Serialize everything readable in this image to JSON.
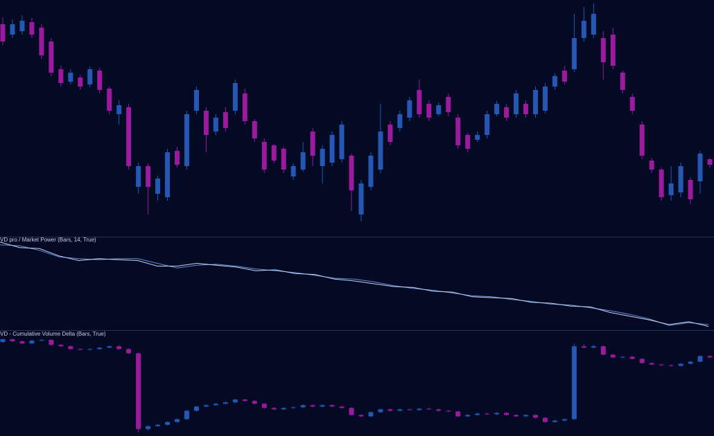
{
  "chart_data": [
    {
      "type": "candlestick",
      "up_color": "#2458b4",
      "down_color": "#9c1a9e",
      "ylim": [
        0,
        340
      ],
      "candles": [
        [
          305,
          315,
          275,
          280
        ],
        [
          290,
          312,
          285,
          305
        ],
        [
          295,
          318,
          290,
          310
        ],
        [
          308,
          314,
          285,
          290
        ],
        [
          300,
          305,
          255,
          260
        ],
        [
          280,
          285,
          230,
          235
        ],
        [
          240,
          245,
          215,
          220
        ],
        [
          222,
          240,
          218,
          235
        ],
        [
          228,
          232,
          210,
          215
        ],
        [
          218,
          244,
          214,
          240
        ],
        [
          238,
          242,
          205,
          210
        ],
        [
          212,
          215,
          175,
          180
        ],
        [
          175,
          195,
          160,
          188
        ],
        [
          185,
          190,
          95,
          100
        ],
        [
          70,
          105,
          60,
          100
        ],
        [
          100,
          104,
          30,
          70
        ],
        [
          60,
          86,
          50,
          82
        ],
        [
          55,
          125,
          50,
          120
        ],
        [
          122,
          128,
          98,
          102
        ],
        [
          100,
          180,
          95,
          175
        ],
        [
          180,
          215,
          175,
          210
        ],
        [
          180,
          185,
          120,
          145
        ],
        [
          150,
          175,
          145,
          170
        ],
        [
          178,
          185,
          150,
          155
        ],
        [
          180,
          225,
          175,
          220
        ],
        [
          205,
          212,
          160,
          165
        ],
        [
          165,
          168,
          135,
          140
        ],
        [
          135,
          140,
          90,
          95
        ],
        [
          130,
          132,
          104,
          108
        ],
        [
          125,
          128,
          90,
          95
        ],
        [
          85,
          104,
          80,
          100
        ],
        [
          95,
          135,
          92,
          120
        ],
        [
          150,
          155,
          100,
          115
        ],
        [
          100,
          130,
          75,
          125
        ],
        [
          105,
          150,
          100,
          145
        ],
        [
          110,
          165,
          105,
          160
        ],
        [
          115,
          118,
          35,
          65
        ],
        [
          30,
          80,
          20,
          75
        ],
        [
          70,
          120,
          65,
          115
        ],
        [
          95,
          190,
          90,
          150
        ],
        [
          160,
          165,
          130,
          135
        ],
        [
          155,
          180,
          150,
          175
        ],
        [
          170,
          200,
          165,
          195
        ],
        [
          210,
          225,
          170,
          175
        ],
        [
          190,
          195,
          165,
          170
        ],
        [
          175,
          192,
          172,
          188
        ],
        [
          200,
          205,
          172,
          178
        ],
        [
          170,
          175,
          125,
          130
        ],
        [
          145,
          148,
          120,
          125
        ],
        [
          138,
          150,
          135,
          145
        ],
        [
          145,
          180,
          140,
          175
        ],
        [
          175,
          194,
          172,
          190
        ],
        [
          185,
          190,
          165,
          170
        ],
        [
          175,
          210,
          170,
          205
        ],
        [
          190,
          195,
          170,
          175
        ],
        [
          175,
          215,
          170,
          210
        ],
        [
          180,
          220,
          176,
          215
        ],
        [
          215,
          234,
          210,
          230
        ],
        [
          238,
          245,
          218,
          222
        ],
        [
          240,
          320,
          236,
          285
        ],
        [
          285,
          330,
          280,
          310
        ],
        [
          290,
          335,
          285,
          320
        ],
        [
          285,
          295,
          225,
          250
        ],
        [
          290,
          300,
          240,
          245
        ],
        [
          235,
          238,
          205,
          210
        ],
        [
          200,
          205,
          175,
          180
        ],
        [
          160,
          165,
          110,
          115
        ],
        [
          108,
          112,
          90,
          95
        ],
        [
          95,
          98,
          50,
          55
        ],
        [
          58,
          100,
          50,
          75
        ],
        [
          62,
          105,
          55,
          100
        ],
        [
          80,
          84,
          45,
          52
        ],
        [
          78,
          122,
          60,
          118
        ],
        [
          110,
          112,
          98,
          102
        ]
      ]
    },
    {
      "type": "line",
      "title": "VD pro / Market Power (Bars, 14, True)",
      "ylim": [
        0,
        100
      ],
      "series": [
        {
          "color": "#5b8fe0",
          "values": [
            92,
            91,
            86,
            79,
            77,
            76,
            77,
            77,
            72,
            67,
            70,
            71,
            69,
            66,
            64,
            62,
            59,
            56,
            55,
            52,
            48,
            45,
            43,
            40,
            37,
            36,
            33,
            31,
            28,
            27,
            24,
            21,
            17,
            12,
            5,
            8,
            6
          ]
        },
        {
          "color": "#c8d4f0",
          "values": [
            95,
            89,
            88,
            80,
            75,
            77,
            76,
            75,
            69,
            69,
            72,
            70,
            68,
            64,
            65,
            61,
            60,
            55,
            53,
            50,
            47,
            46,
            42,
            41,
            36,
            35,
            34,
            30,
            29,
            26,
            25,
            19,
            15,
            11,
            6,
            9,
            4
          ]
        }
      ]
    },
    {
      "type": "candlestick",
      "title": "VD - Cumulative Volume Delta (Bars, True)",
      "up_color": "#2458b4",
      "down_color": "#9c1a9e",
      "ylim": [
        0,
        150
      ],
      "candles": [
        [
          134,
          139,
          133,
          138
        ],
        [
          138,
          139,
          134,
          135
        ],
        [
          135,
          136,
          131,
          132
        ],
        [
          132,
          137,
          131,
          136
        ],
        [
          136,
          138,
          135,
          137
        ],
        [
          137,
          138,
          129,
          130
        ],
        [
          130,
          131,
          127,
          128
        ],
        [
          128,
          129,
          123,
          124
        ],
        [
          124,
          125,
          122,
          123
        ],
        [
          123,
          125,
          122,
          124
        ],
        [
          124,
          127,
          123,
          126
        ],
        [
          126,
          129,
          125,
          128
        ],
        [
          128,
          129,
          123,
          124
        ],
        [
          124,
          125,
          117,
          118
        ],
        [
          118,
          119,
          5,
          10
        ],
        [
          10,
          15,
          8,
          14
        ],
        [
          14,
          17,
          13,
          16
        ],
        [
          16,
          21,
          15,
          20
        ],
        [
          20,
          25,
          19,
          24
        ],
        [
          24,
          37,
          23,
          36
        ],
        [
          36,
          43,
          35,
          42
        ],
        [
          42,
          45,
          41,
          44
        ],
        [
          44,
          47,
          43,
          46
        ],
        [
          46,
          49,
          45,
          48
        ],
        [
          48,
          53,
          47,
          52
        ],
        [
          52,
          53,
          49,
          50
        ],
        [
          50,
          51,
          45,
          46
        ],
        [
          46,
          47,
          39,
          40
        ],
        [
          40,
          41,
          37,
          38
        ],
        [
          38,
          41,
          37,
          40
        ],
        [
          40,
          42,
          39,
          41
        ],
        [
          41,
          45,
          40,
          44
        ],
        [
          44,
          45,
          41,
          42
        ],
        [
          42,
          45,
          41,
          44
        ],
        [
          44,
          45,
          41,
          42
        ],
        [
          42,
          43,
          39,
          40
        ],
        [
          40,
          41,
          29,
          30
        ],
        [
          30,
          31,
          27,
          28
        ],
        [
          28,
          35,
          27,
          34
        ],
        [
          34,
          39,
          33,
          38
        ],
        [
          38,
          39,
          35,
          36
        ],
        [
          36,
          39,
          35,
          38
        ],
        [
          38,
          39,
          36,
          37
        ],
        [
          37,
          40,
          36,
          39
        ],
        [
          39,
          40,
          37,
          38
        ],
        [
          38,
          39,
          35,
          36
        ],
        [
          36,
          37,
          34,
          35
        ],
        [
          35,
          36,
          27,
          28
        ],
        [
          28,
          31,
          27,
          30
        ],
        [
          30,
          33,
          29,
          32
        ],
        [
          32,
          33,
          30,
          31
        ],
        [
          31,
          34,
          30,
          33
        ],
        [
          33,
          34,
          29,
          30
        ],
        [
          30,
          31,
          27,
          28
        ],
        [
          28,
          31,
          27,
          30
        ],
        [
          30,
          31,
          25,
          26
        ],
        [
          26,
          27,
          19,
          20
        ],
        [
          20,
          23,
          19,
          22
        ],
        [
          22,
          25,
          21,
          24
        ],
        [
          24,
          132,
          23,
          128
        ],
        [
          128,
          131,
          125,
          126
        ],
        [
          126,
          130,
          125,
          128
        ],
        [
          128,
          129,
          115,
          116
        ],
        [
          116,
          117,
          111,
          112
        ],
        [
          112,
          114,
          111,
          113
        ],
        [
          113,
          114,
          109,
          110
        ],
        [
          110,
          111,
          103,
          104
        ],
        [
          104,
          105,
          101,
          102
        ],
        [
          102,
          103,
          100,
          101
        ],
        [
          101,
          102,
          99,
          100
        ],
        [
          100,
          104,
          99,
          103
        ],
        [
          103,
          107,
          102,
          106
        ],
        [
          106,
          115,
          105,
          114
        ],
        [
          114,
          115,
          111,
          112
        ]
      ]
    }
  ]
}
